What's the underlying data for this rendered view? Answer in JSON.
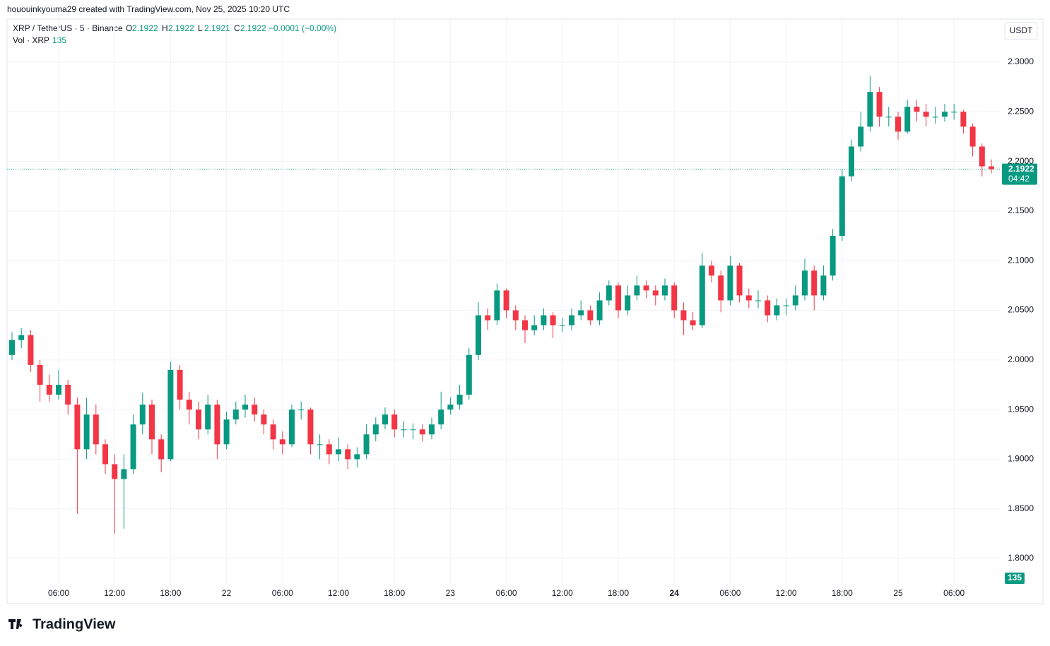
{
  "header": "hououinkyouma29 created with TradingView.com, Nov 25, 2025 10:20 UTC",
  "chart_data": {
    "type": "candlestick",
    "symbol": "XRP / TetherUS · 5 · Binance",
    "ohlc_labels": [
      "O",
      "H",
      "L",
      "C"
    ],
    "ohlc_values": [
      2.1922,
      2.1922,
      2.1921,
      2.1922
    ],
    "change": "−0.0001 (−0.00%)",
    "volume_label": "Vol · XRP",
    "volume_last": 135,
    "currency": "USDT",
    "countdown": "04:42",
    "up_color": "#089981",
    "down_color": "#f23645",
    "ylim": [
      1.7737,
      2.3434
    ],
    "yticks": [
      {
        "value": 1.8,
        "label": "1.8000"
      },
      {
        "value": 1.85,
        "label": "1.8500"
      },
      {
        "value": 1.9,
        "label": "1.9000"
      },
      {
        "value": 1.95,
        "label": "1.9500"
      },
      {
        "value": 2.0,
        "label": "2.0000"
      },
      {
        "value": 2.05,
        "label": "2.0500"
      },
      {
        "value": 2.1,
        "label": "2.1000"
      },
      {
        "value": 2.15,
        "label": "2.1500"
      },
      {
        "value": 2.2,
        "label": "2.2000"
      },
      {
        "value": 2.25,
        "label": "2.2500"
      },
      {
        "value": 2.3,
        "label": "2.3000"
      }
    ],
    "grid": true,
    "categories": [
      null,
      null,
      null,
      null,
      null,
      "06:00",
      null,
      null,
      null,
      null,
      null,
      "12:00",
      null,
      null,
      null,
      null,
      null,
      "18:00",
      null,
      null,
      null,
      null,
      null,
      "22",
      null,
      null,
      null,
      null,
      null,
      "06:00",
      null,
      null,
      null,
      null,
      null,
      "12:00",
      null,
      null,
      null,
      null,
      null,
      "18:00",
      null,
      null,
      null,
      null,
      null,
      "23",
      null,
      null,
      null,
      null,
      null,
      "06:00",
      null,
      null,
      null,
      null,
      null,
      "12:00",
      null,
      null,
      null,
      null,
      null,
      "18:00",
      null,
      null,
      null,
      null,
      null,
      "24",
      null,
      null,
      null,
      null,
      null,
      "06:00",
      null,
      null,
      null,
      null,
      null,
      "12:00",
      null,
      null,
      null,
      null,
      null,
      "18:00",
      null,
      null,
      null,
      null,
      null,
      "25",
      null,
      null,
      null,
      null,
      null,
      "06:00",
      null,
      null,
      null,
      null
    ],
    "candles": [
      [
        2.005,
        2.028,
        2.0,
        2.02
      ],
      [
        2.02,
        2.032,
        2.012,
        2.025
      ],
      [
        2.025,
        2.03,
        1.988,
        1.995
      ],
      [
        1.995,
        2.0,
        1.958,
        1.975
      ],
      [
        1.975,
        1.985,
        1.958,
        1.965
      ],
      [
        1.965,
        1.99,
        1.96,
        1.975
      ],
      [
        1.975,
        1.98,
        1.945,
        1.955
      ],
      [
        1.955,
        1.962,
        1.845,
        1.91
      ],
      [
        1.91,
        1.962,
        1.9,
        1.945
      ],
      [
        1.945,
        1.955,
        1.905,
        1.915
      ],
      [
        1.915,
        1.92,
        1.885,
        1.895
      ],
      [
        1.895,
        1.905,
        1.825,
        1.88
      ],
      [
        1.88,
        1.905,
        1.83,
        1.89
      ],
      [
        1.89,
        1.945,
        1.885,
        1.935
      ],
      [
        1.935,
        1.967,
        1.925,
        1.955
      ],
      [
        1.955,
        1.96,
        1.905,
        1.92
      ],
      [
        1.92,
        1.925,
        1.887,
        1.9
      ],
      [
        1.9,
        1.998,
        1.898,
        1.99
      ],
      [
        1.99,
        1.995,
        1.95,
        1.96
      ],
      [
        1.96,
        1.968,
        1.935,
        1.95
      ],
      [
        1.95,
        1.958,
        1.92,
        1.93
      ],
      [
        1.93,
        1.965,
        1.925,
        1.955
      ],
      [
        1.955,
        1.96,
        1.9,
        1.915
      ],
      [
        1.915,
        1.948,
        1.91,
        1.94
      ],
      [
        1.94,
        1.958,
        1.935,
        1.95
      ],
      [
        1.95,
        1.965,
        1.942,
        1.955
      ],
      [
        1.955,
        1.962,
        1.938,
        1.945
      ],
      [
        1.945,
        1.95,
        1.925,
        1.935
      ],
      [
        1.935,
        1.94,
        1.91,
        1.92
      ],
      [
        1.92,
        1.928,
        1.905,
        1.915
      ],
      [
        1.915,
        1.955,
        1.912,
        1.95
      ],
      [
        1.95,
        1.958,
        1.94,
        1.95
      ],
      [
        1.95,
        1.952,
        1.905,
        1.915
      ],
      [
        1.915,
        1.925,
        1.9,
        1.915
      ],
      [
        1.915,
        1.92,
        1.895,
        1.905
      ],
      [
        1.905,
        1.922,
        1.898,
        1.91
      ],
      [
        1.91,
        1.915,
        1.89,
        1.9
      ],
      [
        1.9,
        1.912,
        1.892,
        1.905
      ],
      [
        1.905,
        1.935,
        1.9,
        1.925
      ],
      [
        1.925,
        1.942,
        1.918,
        1.935
      ],
      [
        1.935,
        1.952,
        1.93,
        1.945
      ],
      [
        1.945,
        1.95,
        1.922,
        1.93
      ],
      [
        1.93,
        1.938,
        1.922,
        1.93
      ],
      [
        1.93,
        1.936,
        1.92,
        1.93
      ],
      [
        1.93,
        1.935,
        1.918,
        1.925
      ],
      [
        1.925,
        1.942,
        1.92,
        1.935
      ],
      [
        1.935,
        1.968,
        1.93,
        1.95
      ],
      [
        1.95,
        1.962,
        1.945,
        1.955
      ],
      [
        1.955,
        1.975,
        1.95,
        1.965
      ],
      [
        1.965,
        2.012,
        1.96,
        2.005
      ],
      [
        2.005,
        2.058,
        2.0,
        2.045
      ],
      [
        2.045,
        2.052,
        2.03,
        2.04
      ],
      [
        2.04,
        2.077,
        2.035,
        2.07
      ],
      [
        2.07,
        2.072,
        2.042,
        2.05
      ],
      [
        2.05,
        2.055,
        2.03,
        2.04
      ],
      [
        2.04,
        2.045,
        2.017,
        2.03
      ],
      [
        2.03,
        2.045,
        2.025,
        2.035
      ],
      [
        2.035,
        2.052,
        2.03,
        2.045
      ],
      [
        2.045,
        2.048,
        2.022,
        2.035
      ],
      [
        2.035,
        2.042,
        2.028,
        2.035
      ],
      [
        2.035,
        2.052,
        2.03,
        2.045
      ],
      [
        2.045,
        2.06,
        2.04,
        2.05
      ],
      [
        2.05,
        2.055,
        2.035,
        2.04
      ],
      [
        2.04,
        2.068,
        2.035,
        2.06
      ],
      [
        2.06,
        2.08,
        2.055,
        2.075
      ],
      [
        2.075,
        2.078,
        2.042,
        2.05
      ],
      [
        2.05,
        2.075,
        2.045,
        2.065
      ],
      [
        2.065,
        2.085,
        2.06,
        2.075
      ],
      [
        2.075,
        2.08,
        2.062,
        2.07
      ],
      [
        2.07,
        2.075,
        2.055,
        2.065
      ],
      [
        2.065,
        2.082,
        2.06,
        2.075
      ],
      [
        2.075,
        2.078,
        2.042,
        2.05
      ],
      [
        2.05,
        2.058,
        2.025,
        2.04
      ],
      [
        2.04,
        2.048,
        2.03,
        2.035
      ],
      [
        2.035,
        2.108,
        2.032,
        2.095
      ],
      [
        2.095,
        2.1,
        2.078,
        2.085
      ],
      [
        2.085,
        2.09,
        2.048,
        2.06
      ],
      [
        2.06,
        2.105,
        2.055,
        2.095
      ],
      [
        2.095,
        2.098,
        2.058,
        2.065
      ],
      [
        2.065,
        2.072,
        2.052,
        2.06
      ],
      [
        2.06,
        2.07,
        2.052,
        2.06
      ],
      [
        2.06,
        2.065,
        2.038,
        2.045
      ],
      [
        2.045,
        2.062,
        2.04,
        2.055
      ],
      [
        2.055,
        2.062,
        2.045,
        2.055
      ],
      [
        2.055,
        2.075,
        2.05,
        2.065
      ],
      [
        2.065,
        2.102,
        2.06,
        2.09
      ],
      [
        2.09,
        2.095,
        2.05,
        2.065
      ],
      [
        2.065,
        2.095,
        2.06,
        2.085
      ],
      [
        2.085,
        2.132,
        2.08,
        2.125
      ],
      [
        2.125,
        2.192,
        2.12,
        2.185
      ],
      [
        2.185,
        2.222,
        2.18,
        2.215
      ],
      [
        2.215,
        2.25,
        2.21,
        2.235
      ],
      [
        2.235,
        2.286,
        2.23,
        2.27
      ],
      [
        2.27,
        2.275,
        2.235,
        2.245
      ],
      [
        2.245,
        2.255,
        2.235,
        2.245
      ],
      [
        2.245,
        2.25,
        2.222,
        2.23
      ],
      [
        2.23,
        2.262,
        2.228,
        2.255
      ],
      [
        2.255,
        2.262,
        2.24,
        2.25
      ],
      [
        2.25,
        2.258,
        2.235,
        2.245
      ],
      [
        2.245,
        2.255,
        2.238,
        2.245
      ],
      [
        2.245,
        2.258,
        2.24,
        2.25
      ],
      [
        2.25,
        2.258,
        2.242,
        2.25
      ],
      [
        2.25,
        2.252,
        2.228,
        2.235
      ],
      [
        2.235,
        2.238,
        2.205,
        2.215
      ],
      [
        2.215,
        2.218,
        2.185,
        2.195
      ],
      [
        2.195,
        2.202,
        2.188,
        2.192
      ]
    ]
  },
  "footer": "TradingView"
}
